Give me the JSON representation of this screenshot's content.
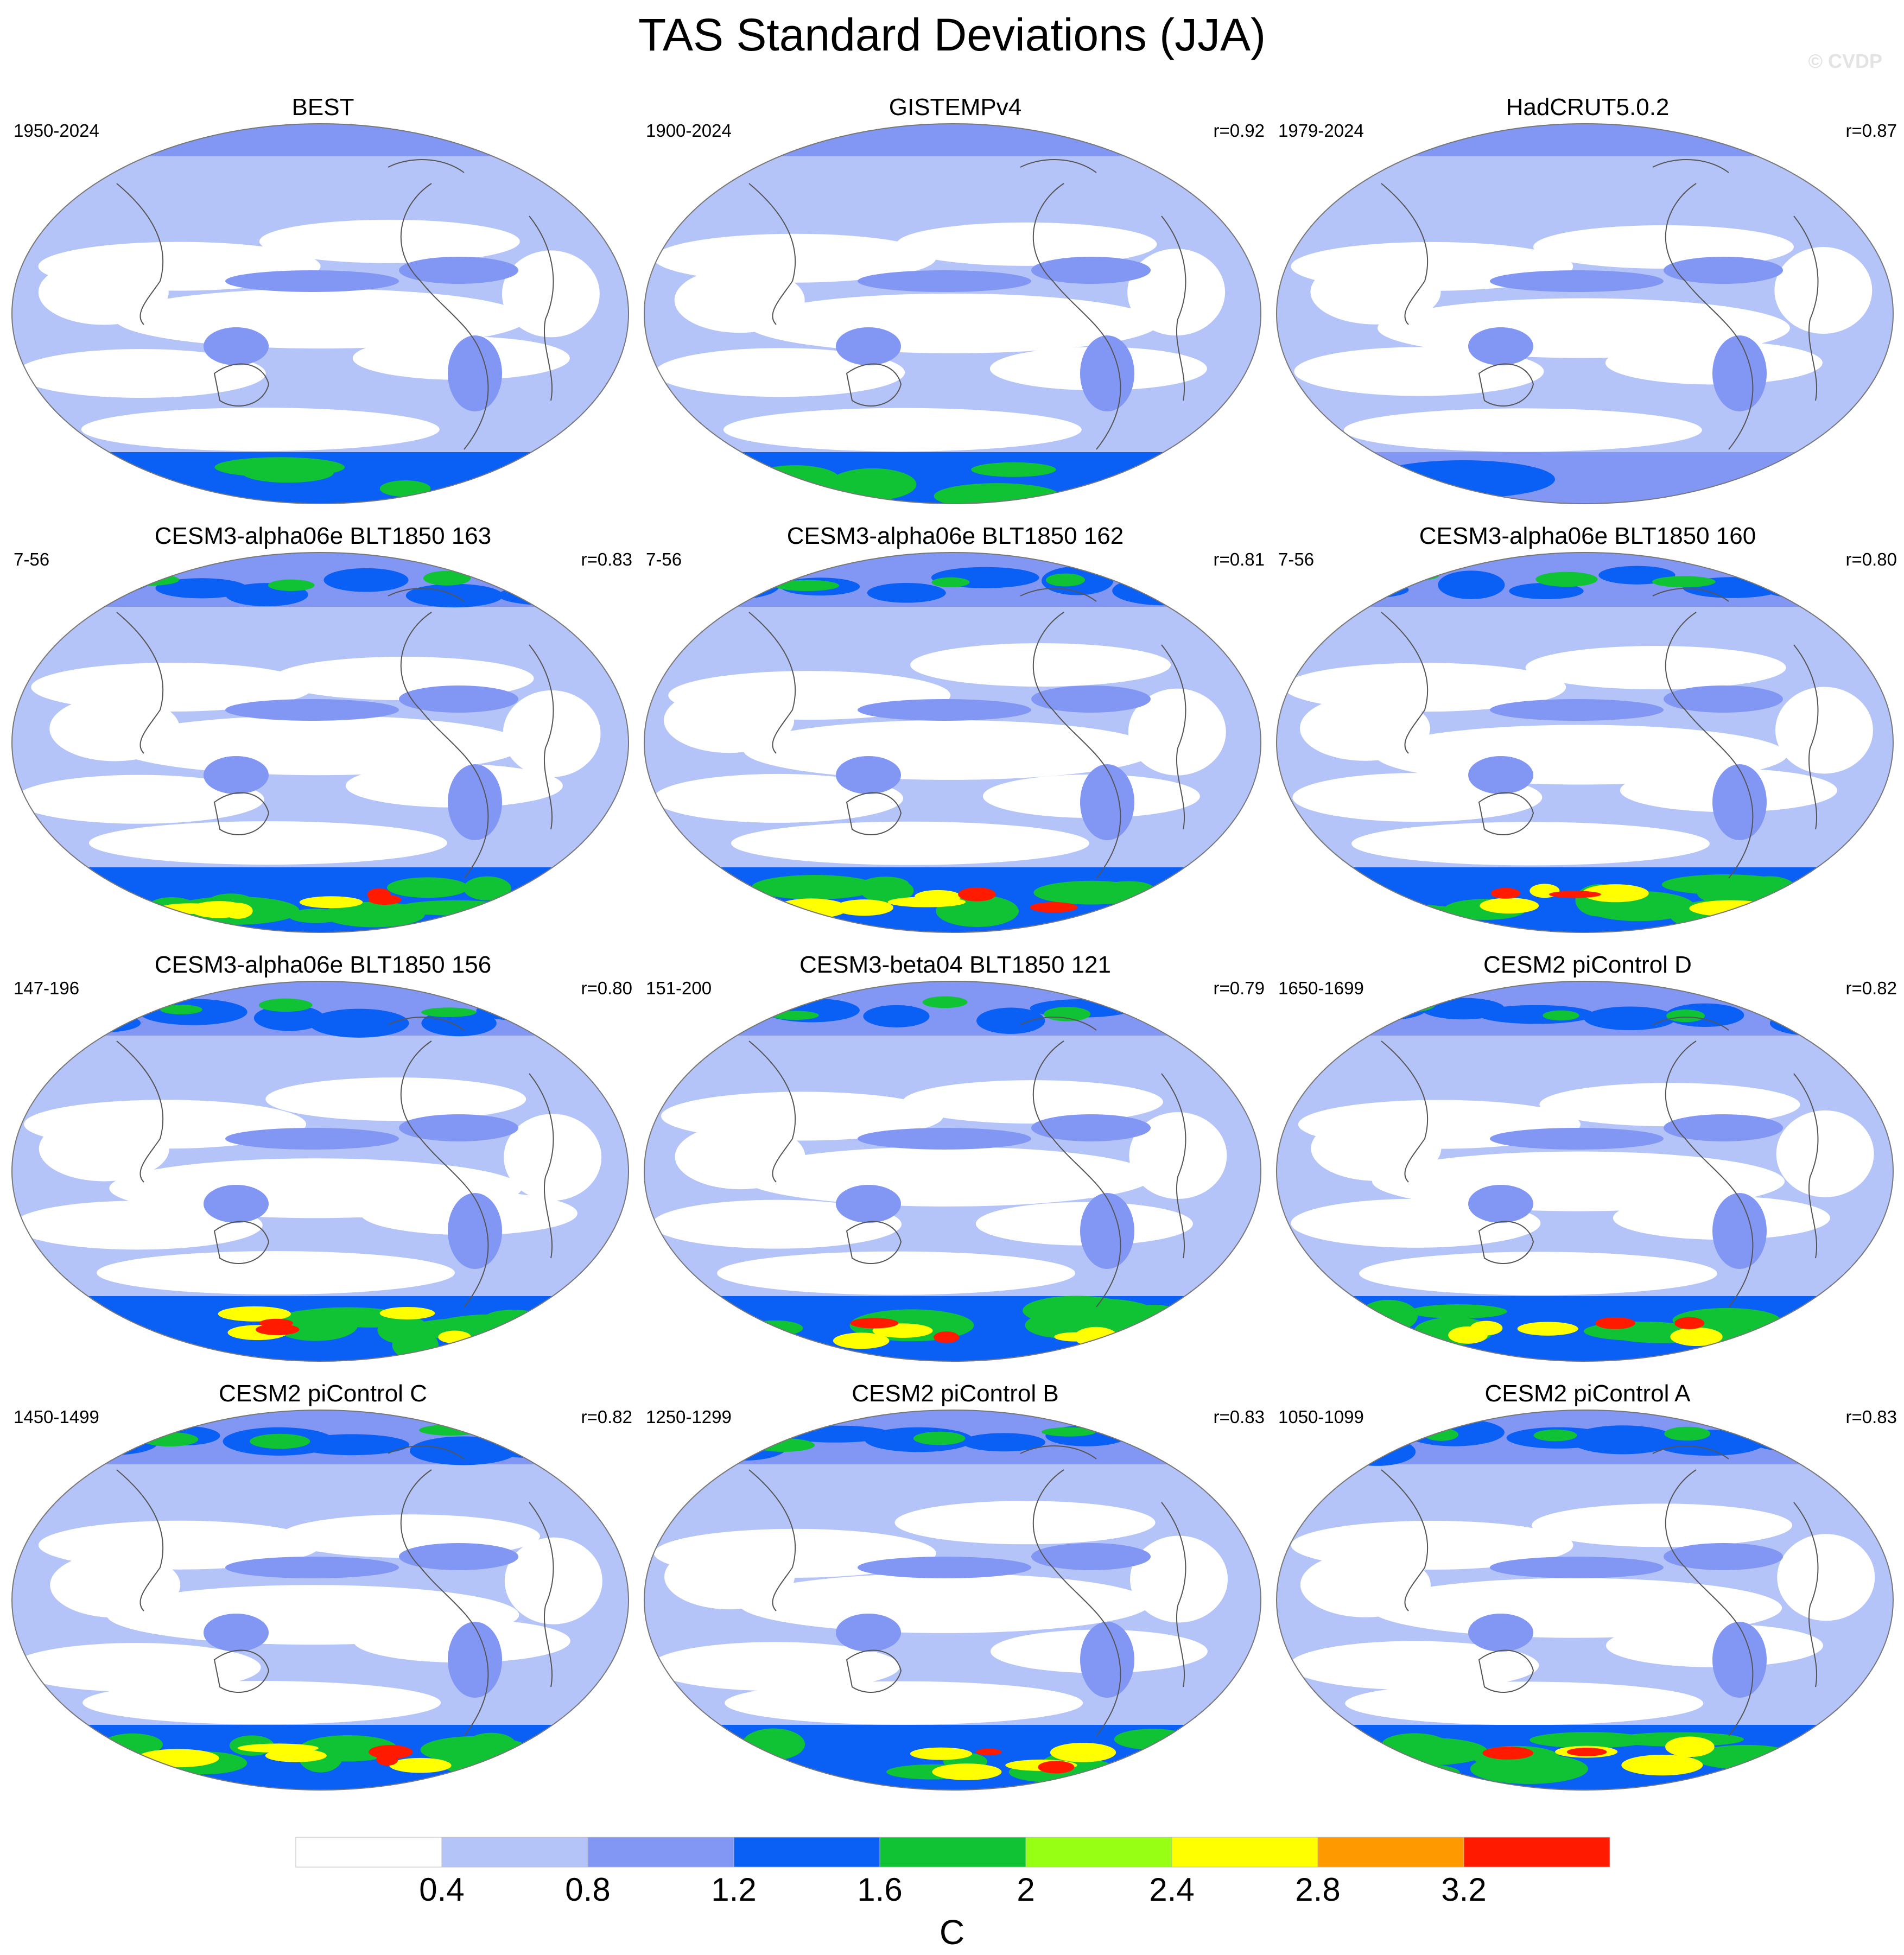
{
  "page": {
    "title": "TAS Standard Deviations (JJA)",
    "watermark": "© CVDP"
  },
  "chart_data": {
    "type": "heatmap",
    "title": "TAS Standard Deviations (JJA)",
    "projection": "robinson",
    "variable": "TAS",
    "season": "JJA",
    "colorbar": {
      "units": "C",
      "levels": [
        0.4,
        0.8,
        1.2,
        1.6,
        2,
        2.4,
        2.8,
        3.2
      ],
      "tick_labels": [
        "0.4",
        "0.8",
        "1.2",
        "1.6",
        "2",
        "2.4",
        "2.8",
        "3.2"
      ],
      "colors": [
        "#ffffff",
        "#b4c4f8",
        "#8296f4",
        "#0a5ff5",
        "#0fc335",
        "#96ff14",
        "#ffff00",
        "#ff9900",
        "#ff1a00"
      ],
      "placement": "bottom"
    },
    "panels": [
      {
        "title": "BEST",
        "period": "1950-2024",
        "corr": ""
      },
      {
        "title": "GISTEMPv4",
        "period": "1900-2024",
        "corr": "r=0.92"
      },
      {
        "title": "HadCRUT5.0.2",
        "period": "1979-2024",
        "corr": "r=0.87"
      },
      {
        "title": "CESM3-alpha06e BLT1850 163",
        "period": "7-56",
        "corr": "r=0.83"
      },
      {
        "title": "CESM3-alpha06e BLT1850 162",
        "period": "7-56",
        "corr": "r=0.81"
      },
      {
        "title": "CESM3-alpha06e BLT1850 160",
        "period": "7-56",
        "corr": "r=0.80"
      },
      {
        "title": "CESM3-alpha06e BLT1850 156",
        "period": "147-196",
        "corr": "r=0.80"
      },
      {
        "title": "CESM3-beta04 BLT1850 121",
        "period": "151-200",
        "corr": "r=0.79"
      },
      {
        "title": "CESM2 piControl D",
        "period": "1650-1699",
        "corr": "r=0.82"
      },
      {
        "title": "CESM2 piControl C",
        "period": "1450-1499",
        "corr": "r=0.82"
      },
      {
        "title": "CESM2 piControl B",
        "period": "1250-1299",
        "corr": "r=0.83"
      },
      {
        "title": "CESM2 piControl A",
        "period": "1050-1099",
        "corr": "r=0.83"
      }
    ]
  }
}
